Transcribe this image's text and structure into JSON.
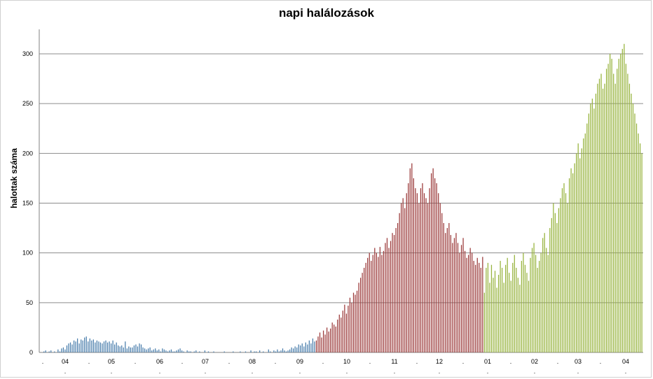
{
  "colors": {
    "blue": "#4a7eac",
    "red": "#9b3a3a",
    "green": "#97b33d",
    "grid": "#8c8c8c"
  },
  "chart_data": {
    "type": "bar",
    "title": "napi halálozások",
    "ylabel": "halottak száma",
    "xlabel": "",
    "ylim": [
      0,
      300
    ],
    "yticks": [
      0,
      50,
      100,
      150,
      200,
      250,
      300
    ],
    "grid": true,
    "legend": "none",
    "x_tick_labels": [
      "04",
      "05",
      "06",
      "07",
      "08",
      "09",
      "10",
      "11",
      "12",
      "01",
      "02",
      "03",
      "04"
    ],
    "x_separator": ".",
    "series": [
      {
        "color_key": "blue",
        "values": [
          1,
          2,
          0,
          1,
          2,
          0,
          1,
          0,
          3,
          1,
          4,
          5,
          3,
          7,
          9,
          10,
          8,
          12,
          11,
          14,
          9,
          13,
          12,
          15,
          16,
          11,
          14,
          12,
          13,
          10,
          12,
          11,
          10,
          9,
          11,
          12,
          10,
          11,
          9,
          12,
          8,
          10,
          7,
          6,
          7,
          5,
          11,
          4,
          6,
          5,
          5,
          7,
          8,
          6,
          9,
          8,
          5,
          4,
          3,
          4,
          5,
          2,
          3,
          4,
          2,
          3,
          1,
          4,
          3,
          2,
          1,
          2,
          3,
          1,
          1,
          2,
          3,
          4,
          2,
          1,
          0,
          2,
          1,
          1,
          0,
          1,
          2,
          0,
          1,
          0,
          0,
          2,
          0,
          1,
          0,
          0,
          1,
          0,
          0,
          0,
          0,
          0,
          1,
          0,
          0,
          0,
          0,
          1,
          0,
          0,
          0,
          1,
          0,
          0,
          1,
          0,
          0,
          2,
          0,
          1,
          1,
          0,
          2,
          0,
          1,
          0,
          0,
          3,
          1,
          0,
          2,
          1,
          3,
          1,
          2,
          4,
          2,
          1,
          2,
          3,
          5,
          4,
          6,
          5,
          8,
          7,
          9,
          6,
          10,
          8,
          12,
          9,
          14,
          11
        ]
      },
      {
        "color_key": "red",
        "values": [
          12,
          16,
          20,
          15,
          22,
          18,
          25,
          21,
          24,
          30,
          28,
          26,
          33,
          38,
          35,
          42,
          48,
          39,
          47,
          55,
          50,
          60,
          58,
          62,
          70,
          75,
          80,
          85,
          90,
          95,
          100,
          92,
          98,
          105,
          100,
          96,
          106,
          98,
          102,
          110,
          115,
          105,
          112,
          120,
          118,
          125,
          130,
          140,
          150,
          155,
          145,
          160,
          170,
          185,
          190,
          175,
          165,
          160,
          150,
          165,
          170,
          160,
          155,
          150,
          165,
          180,
          185,
          175,
          170,
          160,
          150,
          140,
          130,
          120,
          125,
          130,
          118,
          110,
          115,
          120,
          110,
          100,
          108,
          115,
          102,
          95,
          98,
          105,
          100,
          92,
          88,
          95,
          90,
          85,
          96
        ]
      },
      {
        "color_key": "green",
        "values": [
          60,
          85,
          90,
          70,
          88,
          75,
          82,
          65,
          78,
          92,
          85,
          70,
          88,
          95,
          80,
          72,
          90,
          98,
          85,
          75,
          68,
          92,
          100,
          88,
          80,
          72,
          95,
          105,
          110,
          98,
          85,
          92,
          100,
          115,
          120,
          105,
          98,
          125,
          135,
          150,
          140,
          130,
          145,
          155,
          165,
          170,
          160,
          150,
          175,
          185,
          180,
          190,
          200,
          210,
          195,
          205,
          215,
          220,
          230,
          240,
          250,
          255,
          245,
          260,
          270,
          275,
          280,
          265,
          270,
          285,
          290,
          300,
          295,
          280,
          270,
          285,
          295,
          300,
          305,
          310,
          290,
          280,
          270,
          260,
          250,
          240,
          230,
          220,
          210,
          200
        ]
      }
    ]
  }
}
